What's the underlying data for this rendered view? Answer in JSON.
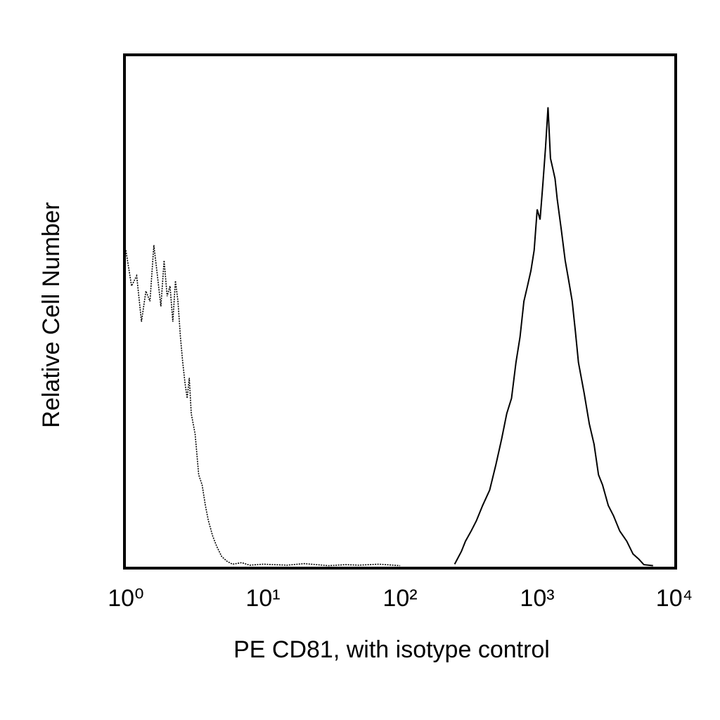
{
  "chart_data": {
    "type": "line",
    "xlabel": "PE CD81, with isotype control",
    "ylabel": "Relative Cell Number",
    "xscale": "log",
    "xlim": [
      1,
      10000
    ],
    "ylim": [
      0,
      100
    ],
    "xticks": [
      {
        "value": 1,
        "label": "10⁰"
      },
      {
        "value": 10,
        "label": "10¹"
      },
      {
        "value": 100,
        "label": "10²"
      },
      {
        "value": 1000,
        "label": "10³"
      },
      {
        "value": 10000,
        "label": "10⁴"
      }
    ],
    "series": [
      {
        "color": "#000000",
        "dash": "dotted",
        "x": [
          1,
          1.1,
          1.2,
          1.3,
          1.4,
          1.5,
          1.6,
          1.7,
          1.8,
          1.9,
          2,
          2.1,
          2.2,
          2.3,
          2.4,
          2.5,
          2.6,
          2.7,
          2.8,
          2.9,
          3,
          3.2,
          3.4,
          3.6,
          3.8,
          4,
          4.3,
          4.6,
          5,
          5.5,
          6,
          7,
          8,
          10,
          15,
          20,
          30,
          40,
          50,
          70,
          100
        ],
        "values": [
          62,
          55,
          57,
          48,
          54,
          52,
          63,
          57,
          51,
          60,
          53,
          55,
          48,
          56,
          52,
          45,
          40,
          36,
          33,
          37,
          30,
          26,
          18,
          16,
          12,
          9,
          6,
          4,
          2,
          1,
          0.5,
          0.8,
          0.3,
          0.5,
          0.3,
          0.6,
          0.2,
          0.4,
          0.3,
          0.5,
          0.2
        ]
      },
      {
        "color": "#000000",
        "dash": "solid",
        "x": [
          250,
          280,
          300,
          330,
          360,
          400,
          450,
          500,
          550,
          600,
          650,
          700,
          750,
          800,
          850,
          900,
          950,
          1000,
          1050,
          1100,
          1150,
          1200,
          1250,
          1300,
          1350,
          1400,
          1500,
          1600,
          1700,
          1800,
          1900,
          2000,
          2200,
          2400,
          2600,
          2800,
          3000,
          3300,
          3600,
          4000,
          4500,
          5000,
          5500,
          6000,
          7000
        ],
        "values": [
          0.5,
          3,
          5,
          7,
          9,
          12,
          15,
          20,
          25,
          30,
          33,
          40,
          45,
          52,
          55,
          58,
          62,
          70,
          68,
          75,
          82,
          90,
          80,
          78,
          76,
          72,
          66,
          60,
          56,
          52,
          46,
          40,
          34,
          28,
          24,
          18,
          16,
          12,
          10,
          7,
          5,
          2.5,
          1.5,
          0.4,
          0.2
        ]
      }
    ]
  }
}
